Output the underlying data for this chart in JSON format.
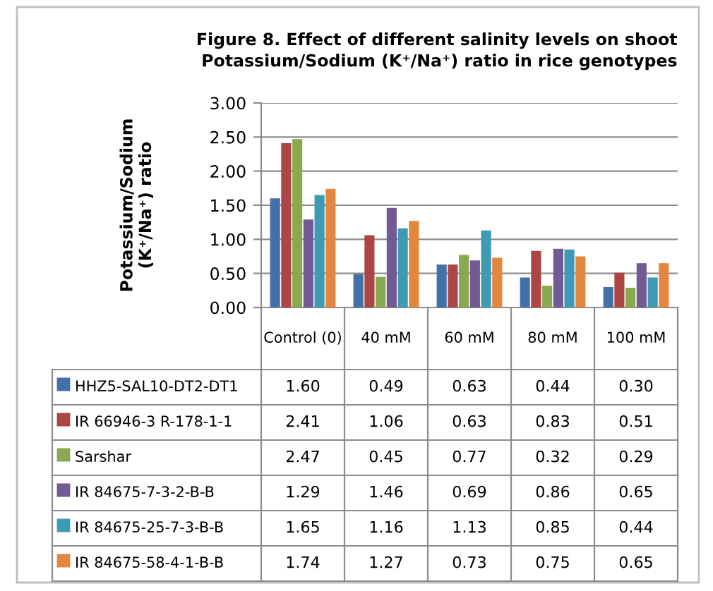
{
  "chart_data": {
    "type": "bar",
    "title": "Figure 8. Effect of different salinity levels on shoot\nPotassium/Sodium (K⁺/Na⁺) ratio in rice genotypes",
    "ylabel": "Potassium/Sodium\n(K⁺/Na⁺) ratio",
    "categories": [
      "Control (0)",
      "40 mM",
      "60 mM",
      "80 mM",
      "100 mM"
    ],
    "series": [
      {
        "name": "HHZ5-SAL10-DT2-DT1",
        "color": "#4470a8",
        "values": [
          1.6,
          0.49,
          0.63,
          0.44,
          0.3
        ],
        "value_labels": [
          "1.60",
          "0.49",
          "0.63",
          "0.44",
          "0.30"
        ]
      },
      {
        "name": "IR 66946-3 R-178-1-1",
        "color": "#ac4543",
        "values": [
          2.41,
          1.06,
          0.63,
          0.83,
          0.51
        ],
        "value_labels": [
          "2.41",
          "1.06",
          "0.63",
          "0.83",
          "0.51"
        ]
      },
      {
        "name": "Sarshar",
        "color": "#8aa84f",
        "values": [
          2.47,
          0.45,
          0.77,
          0.32,
          0.29
        ],
        "value_labels": [
          "2.47",
          "0.45",
          "0.77",
          "0.32",
          "0.29"
        ]
      },
      {
        "name": "IR 84675-7-3-2-B-B",
        "color": "#725a94",
        "values": [
          1.29,
          1.46,
          0.69,
          0.86,
          0.65
        ],
        "value_labels": [
          "1.29",
          "1.46",
          "0.69",
          "0.86",
          "0.65"
        ]
      },
      {
        "name": "IR 84675-25-7-3-B-B",
        "color": "#3e9bb3",
        "values": [
          1.65,
          1.16,
          1.13,
          0.85,
          0.44
        ],
        "value_labels": [
          "1.65",
          "1.16",
          "1.13",
          "0.85",
          "0.44"
        ]
      },
      {
        "name": "IR 84675-58-4-1-B-B",
        "color": "#e3873f",
        "values": [
          1.74,
          1.27,
          0.73,
          0.75,
          0.65
        ],
        "value_labels": [
          "1.74",
          "1.27",
          "0.73",
          "0.75",
          "0.65"
        ]
      }
    ],
    "ylim": [
      0,
      3
    ],
    "yticks": [
      {
        "value": 0,
        "label": "0.00"
      },
      {
        "value": 0.5,
        "label": "0.50"
      },
      {
        "value": 1,
        "label": "1.00"
      },
      {
        "value": 1.5,
        "label": "1.50"
      },
      {
        "value": 2,
        "label": "2.00"
      },
      {
        "value": 2.5,
        "label": "2.50"
      },
      {
        "value": 3,
        "label": "3.00"
      }
    ],
    "grid": "y",
    "legend": "bottom"
  }
}
